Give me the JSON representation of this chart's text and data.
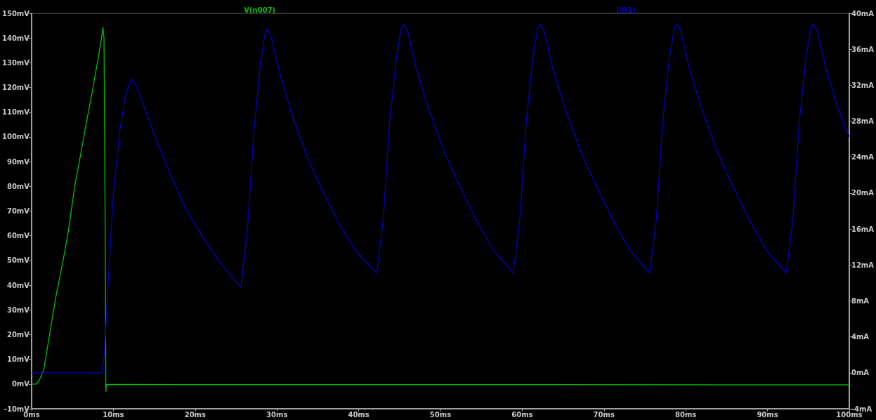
{
  "chart_data": {
    "type": "line",
    "xlim": [
      0,
      100
    ],
    "xticks": [
      {
        "value": 0,
        "label": "0ms"
      },
      {
        "value": 10,
        "label": "10ms"
      },
      {
        "value": 20,
        "label": "20ms"
      },
      {
        "value": 30,
        "label": "30ms"
      },
      {
        "value": 40,
        "label": "40ms"
      },
      {
        "value": 50,
        "label": "50ms"
      },
      {
        "value": 60,
        "label": "60ms"
      },
      {
        "value": 70,
        "label": "70ms"
      },
      {
        "value": 80,
        "label": "80ms"
      },
      {
        "value": 90,
        "label": "90ms"
      },
      {
        "value": 100,
        "label": "100ms"
      }
    ],
    "ylim": [
      -10,
      150
    ],
    "yticks": [
      {
        "value": -10,
        "label": "-10mV"
      },
      {
        "value": 0,
        "label": "0mV"
      },
      {
        "value": 10,
        "label": "10mV"
      },
      {
        "value": 20,
        "label": "20mV"
      },
      {
        "value": 30,
        "label": "30mV"
      },
      {
        "value": 40,
        "label": "40mV"
      },
      {
        "value": 50,
        "label": "50mV"
      },
      {
        "value": 60,
        "label": "60mV"
      },
      {
        "value": 70,
        "label": "70mV"
      },
      {
        "value": 80,
        "label": "80mV"
      },
      {
        "value": 90,
        "label": "90mV"
      },
      {
        "value": 100,
        "label": "100mV"
      },
      {
        "value": 110,
        "label": "110mV"
      },
      {
        "value": 120,
        "label": "120mV"
      },
      {
        "value": 130,
        "label": "130mV"
      },
      {
        "value": 140,
        "label": "140mV"
      },
      {
        "value": 150,
        "label": "150mV"
      }
    ],
    "y2lim": [
      -4,
      40
    ],
    "y2ticks": [
      {
        "value": -4,
        "label": "-4mA"
      },
      {
        "value": 0,
        "label": "0mA"
      },
      {
        "value": 4,
        "label": "4mA"
      },
      {
        "value": 8,
        "label": "8mA"
      },
      {
        "value": 12,
        "label": "12mA"
      },
      {
        "value": 16,
        "label": "16mA"
      },
      {
        "value": 20,
        "label": "20mA"
      },
      {
        "value": 24,
        "label": "24mA"
      },
      {
        "value": 28,
        "label": "28mA"
      },
      {
        "value": 32,
        "label": "32mA"
      },
      {
        "value": 36,
        "label": "36mA"
      },
      {
        "value": 40,
        "label": "40mA"
      }
    ],
    "grid": false,
    "legend": "top",
    "marker": "none",
    "line_style": "solid",
    "series": [
      {
        "name": "V(n007)",
        "color": "#00c000",
        "x": [
          0,
          0.6,
          1.0,
          1.5,
          2.44,
          3.0,
          3.85,
          4.5,
          5.26,
          6.0,
          6.68,
          7.4,
          8.09,
          8.5,
          8.72,
          8.85,
          8.9,
          9.0,
          9.08,
          9.15,
          100
        ],
        "values": [
          0,
          0,
          2,
          6,
          25,
          36,
          50,
          62,
          80,
          93,
          105.5,
          118,
          131,
          139,
          144.3,
          140,
          115,
          60,
          -3,
          -0.2,
          -0.3
        ]
      },
      {
        "name": "I(R1)",
        "color": "#0000c8",
        "axis": "y2",
        "x": [
          0,
          8.6,
          8.9,
          9.3,
          10,
          10.8,
          11.5,
          12.2,
          12.8,
          13.8,
          15,
          17,
          19,
          21,
          23,
          25.6,
          26.4,
          27.2,
          28.0,
          28.5,
          28.8,
          29.3,
          30.3,
          31.8,
          33.8,
          35.8,
          37.8,
          39.8,
          42.2,
          43.0,
          43.8,
          44.6,
          45.2,
          45.5,
          46,
          47,
          48.5,
          50.5,
          52.5,
          54.5,
          56.5,
          58.9,
          59.7,
          60.5,
          61.3,
          61.9,
          62.2,
          62.7,
          63.7,
          65.2,
          67.2,
          69.2,
          71.2,
          73.2,
          75.6,
          76.4,
          77.2,
          78.0,
          78.6,
          78.9,
          79.4,
          80.4,
          81.9,
          83.9,
          85.9,
          87.9,
          89.9,
          92.3,
          93.1,
          93.9,
          94.7,
          95.3,
          95.6,
          96.1,
          97.1,
          98.6,
          100
        ],
        "values": [
          0,
          0,
          2,
          9,
          20,
          27,
          31,
          32.7,
          32.0,
          29.5,
          26.5,
          22,
          18,
          15,
          12.3,
          9.5,
          16,
          27,
          34.5,
          37.5,
          38.2,
          37.4,
          33.5,
          28.8,
          23.8,
          19.8,
          16.3,
          13.4,
          11.1,
          17,
          28,
          35,
          38.3,
          38.8,
          38,
          34,
          29.5,
          24.5,
          20.5,
          16.8,
          13.6,
          11.1,
          17,
          28,
          35,
          38.3,
          38.8,
          38,
          34,
          29.5,
          24.5,
          20.5,
          16.8,
          13.6,
          11.1,
          17,
          28,
          35,
          38.3,
          38.8,
          38,
          34,
          29.5,
          24.5,
          20.5,
          16.8,
          13.6,
          11.1,
          17,
          28,
          35,
          38.3,
          38.8,
          38,
          34,
          29.5,
          26.3
        ]
      }
    ]
  }
}
